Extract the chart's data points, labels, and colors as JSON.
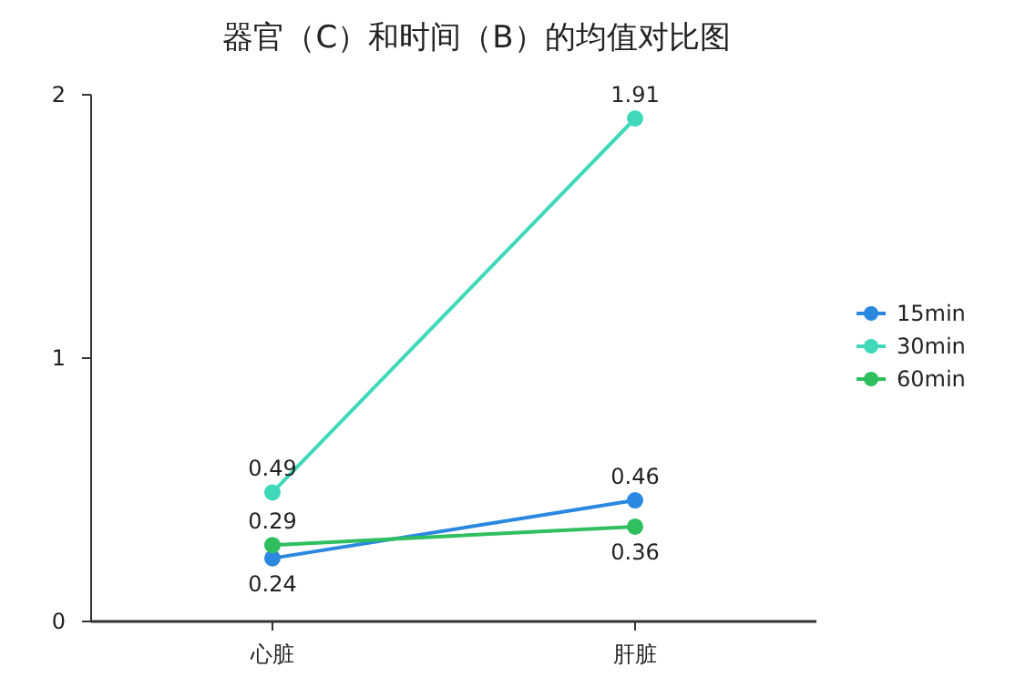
{
  "chart_data": {
    "type": "line",
    "title": "器官（C）和时间（B）的均值对比图",
    "categories": [
      "心脏",
      "肝脏"
    ],
    "series": [
      {
        "name": "15min",
        "color": "#2b88e0",
        "values": [
          0.24,
          0.46
        ]
      },
      {
        "name": "30min",
        "color": "#3fd9b9",
        "values": [
          0.49,
          1.91
        ]
      },
      {
        "name": "60min",
        "color": "#2fbf5f",
        "values": [
          0.29,
          0.36
        ]
      }
    ],
    "ylim": [
      0,
      2
    ],
    "yticks": [
      0,
      1,
      2
    ],
    "data_labels": true,
    "legend": "right",
    "marker": "circle",
    "grid": false
  }
}
